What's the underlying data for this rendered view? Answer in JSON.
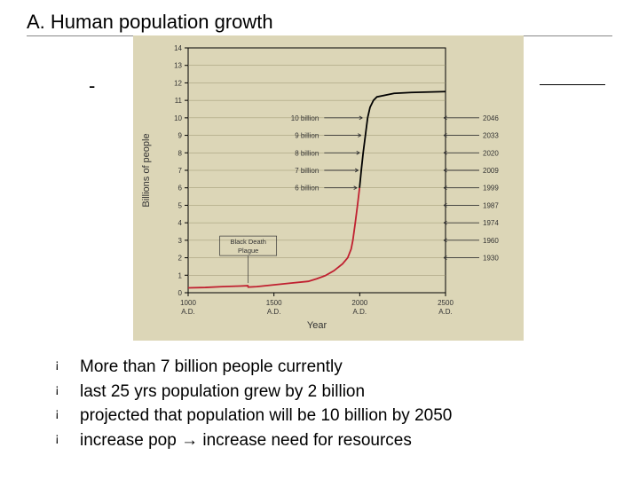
{
  "title": "A. Human population growth",
  "bullets": [
    "More than 7 billion people currently",
    "last 25 yrs population grew by 2 billion",
    "projected that population will be 10 billion by 2050",
    "increase pop → increase need for resources"
  ],
  "chart": {
    "type": "line",
    "background_color": "#dcd6b7",
    "plot_bg": "#dcd6b7",
    "axis_color": "#000000",
    "grid_color": "#9a9470",
    "curve_color_hist": "#c02030",
    "curve_color_proj": "#000000",
    "border_color": "#9a9470",
    "label_color": "#333333",
    "title_fontsize": 9,
    "axis_fontsize": 9,
    "tick_fontsize": 8,
    "x_label": "Year",
    "y_label": "Billions of people",
    "x_ticks": [
      1000,
      1500,
      2000,
      2500
    ],
    "x_tick_sub": "A.D.",
    "y_ticks": [
      0,
      1,
      2,
      3,
      4,
      5,
      6,
      7,
      8,
      9,
      10,
      11,
      12,
      13,
      14
    ],
    "xlim": [
      1000,
      2500
    ],
    "ylim": [
      0,
      14
    ],
    "annotation_bd": "Black Death\nPlague",
    "annotation_bd_x": 1350,
    "milestones_left": [
      {
        "y": 10,
        "label": "10 billion"
      },
      {
        "y": 9,
        "label": "9 billion"
      },
      {
        "y": 8,
        "label": "8 billion"
      },
      {
        "y": 7,
        "label": "7 billion"
      },
      {
        "y": 6,
        "label": "6 billion"
      }
    ],
    "milestones_right": [
      {
        "y": 10,
        "label": "2046"
      },
      {
        "y": 9,
        "label": "2033"
      },
      {
        "y": 8,
        "label": "2020"
      },
      {
        "y": 7,
        "label": "2009"
      },
      {
        "y": 6,
        "label": "1999"
      },
      {
        "y": 5,
        "label": "1987"
      },
      {
        "y": 4,
        "label": "1974"
      },
      {
        "y": 3,
        "label": "1960"
      },
      {
        "y": 2,
        "label": "1930"
      }
    ],
    "curve_hist": [
      [
        1000,
        0.28
      ],
      [
        1100,
        0.3
      ],
      [
        1200,
        0.35
      ],
      [
        1300,
        0.38
      ],
      [
        1348,
        0.4
      ],
      [
        1350,
        0.32
      ],
      [
        1400,
        0.35
      ],
      [
        1500,
        0.45
      ],
      [
        1600,
        0.55
      ],
      [
        1700,
        0.65
      ],
      [
        1750,
        0.8
      ],
      [
        1800,
        0.98
      ],
      [
        1850,
        1.26
      ],
      [
        1900,
        1.65
      ],
      [
        1930,
        2.0
      ],
      [
        1950,
        2.5
      ],
      [
        1960,
        3.0
      ],
      [
        1974,
        4.0
      ],
      [
        1987,
        5.0
      ],
      [
        1999,
        6.0
      ]
    ],
    "curve_proj": [
      [
        1999,
        6.0
      ],
      [
        2009,
        7.0
      ],
      [
        2020,
        8.0
      ],
      [
        2033,
        9.0
      ],
      [
        2046,
        10.0
      ],
      [
        2060,
        10.6
      ],
      [
        2080,
        11.0
      ],
      [
        2100,
        11.2
      ],
      [
        2200,
        11.4
      ],
      [
        2300,
        11.45
      ],
      [
        2500,
        11.5
      ]
    ]
  }
}
